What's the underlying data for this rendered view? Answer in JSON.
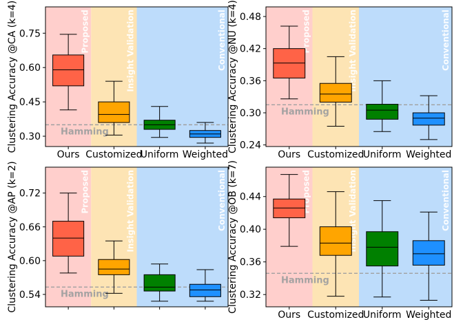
{
  "chart_data": [
    {
      "type": "box",
      "ylabel": "Clustering Accuracy @CA (k=4)",
      "categories": [
        "Ours",
        "Customized",
        "Uniform",
        "Weighted"
      ],
      "ylim": [
        0.255,
        0.865
      ],
      "yticks": [
        0.3,
        0.45,
        0.6,
        0.75
      ],
      "ytick_labels": [
        "0.30",
        "0.45",
        "0.60",
        "0.75"
      ],
      "show_xticklabels": true,
      "boxes": [
        {
          "min": 0.415,
          "q1": 0.52,
          "median": 0.59,
          "q3": 0.655,
          "max": 0.745
        },
        {
          "min": 0.305,
          "q1": 0.36,
          "median": 0.395,
          "q3": 0.45,
          "max": 0.54
        },
        {
          "min": 0.295,
          "q1": 0.33,
          "median": 0.35,
          "q3": 0.37,
          "max": 0.43
        },
        {
          "min": 0.27,
          "q1": 0.295,
          "median": 0.31,
          "q3": 0.325,
          "max": 0.36
        }
      ],
      "hamming": 0.35
    },
    {
      "type": "box",
      "ylabel": "Clustering Accuracy @NU (k=4)",
      "categories": [
        "Ours",
        "Customized",
        "Uniform",
        "Weighted"
      ],
      "ylim": [
        0.237,
        0.498
      ],
      "yticks": [
        0.24,
        0.3,
        0.36,
        0.42,
        0.48
      ],
      "ytick_labels": [
        "0.24",
        "0.30",
        "0.36",
        "0.42",
        "0.48"
      ],
      "show_xticklabels": true,
      "boxes": [
        {
          "min": 0.326,
          "q1": 0.365,
          "median": 0.393,
          "q3": 0.42,
          "max": 0.462
        },
        {
          "min": 0.275,
          "q1": 0.32,
          "median": 0.335,
          "q3": 0.355,
          "max": 0.405
        },
        {
          "min": 0.265,
          "q1": 0.288,
          "median": 0.305,
          "q3": 0.316,
          "max": 0.36
        },
        {
          "min": 0.25,
          "q1": 0.277,
          "median": 0.29,
          "q3": 0.3,
          "max": 0.332
        }
      ],
      "hamming": 0.315
    },
    {
      "type": "box",
      "ylabel": "Clustering Accuracy @AP (k=2)",
      "categories": [
        "Ours",
        "Customized",
        "Uniform",
        "Weighted"
      ],
      "ylim": [
        0.518,
        0.766
      ],
      "yticks": [
        0.54,
        0.6,
        0.66,
        0.72
      ],
      "ytick_labels": [
        "0.54",
        "0.60",
        "0.66",
        "0.72"
      ],
      "show_xticklabels": false,
      "boxes": [
        {
          "min": 0.578,
          "q1": 0.608,
          "median": 0.64,
          "q3": 0.67,
          "max": 0.72
        },
        {
          "min": 0.542,
          "q1": 0.575,
          "median": 0.585,
          "q3": 0.602,
          "max": 0.635
        },
        {
          "min": 0.528,
          "q1": 0.546,
          "median": 0.553,
          "q3": 0.575,
          "max": 0.594
        },
        {
          "min": 0.528,
          "q1": 0.536,
          "median": 0.548,
          "q3": 0.558,
          "max": 0.584
        }
      ],
      "hamming": 0.553
    },
    {
      "type": "box",
      "ylabel": "Clustering Accuracy @OB (k=7)",
      "categories": [
        "Ours",
        "Customized",
        "Uniform",
        "Weighted"
      ],
      "ylim": [
        0.305,
        0.476
      ],
      "yticks": [
        0.32,
        0.36,
        0.4,
        0.44
      ],
      "ytick_labels": [
        "0.32",
        "0.36",
        "0.40",
        "0.44"
      ],
      "show_xticklabels": true,
      "boxes": [
        {
          "min": 0.379,
          "q1": 0.414,
          "median": 0.426,
          "q3": 0.437,
          "max": 0.467
        },
        {
          "min": 0.318,
          "q1": 0.368,
          "median": 0.383,
          "q3": 0.403,
          "max": 0.446
        },
        {
          "min": 0.317,
          "q1": 0.355,
          "median": 0.378,
          "q3": 0.397,
          "max": 0.435
        },
        {
          "min": 0.313,
          "q1": 0.356,
          "median": 0.37,
          "q3": 0.386,
          "max": 0.421
        }
      ],
      "hamming": 0.346
    }
  ],
  "labels": {
    "hamming": "Hamming",
    "proposed": "Proposed",
    "insight": "Insight Validation",
    "conventional": "Conventional"
  },
  "colors": {
    "ours": "#ff6347",
    "customized": "#ffa500",
    "uniform": "#008000",
    "weighted": "#1e90ff",
    "bg_proposed": "#ffcfcc",
    "bg_insight": "#fde4b4",
    "bg_conventional": "#bddcfb",
    "hamming_line": "#a0a0a0"
  }
}
